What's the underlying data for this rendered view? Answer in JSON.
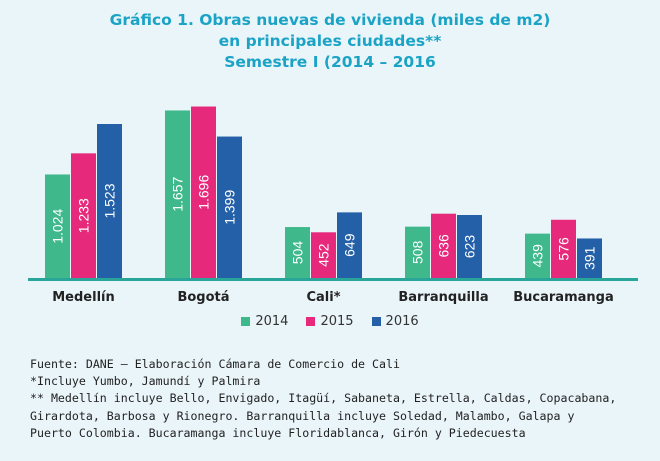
{
  "title_lines": [
    "Gráfico 1. Obras nuevas de vivienda (miles de m2)",
    "en principales ciudades**",
    "Semestre I (2014 – 2016"
  ],
  "chart_data": {
    "type": "bar",
    "categories": [
      "Medellín",
      "Bogotá",
      "Cali*",
      "Barranquilla",
      "Bucaramanga"
    ],
    "series": [
      {
        "name": "2014",
        "color": "#3fb98b",
        "values": [
          1.024,
          1.657,
          0.504,
          0.508,
          0.439
        ],
        "labels": [
          "1.024",
          "1.657",
          "504",
          "508",
          "439"
        ]
      },
      {
        "name": "2015",
        "color": "#e6297b",
        "values": [
          1.233,
          1.696,
          0.452,
          0.636,
          0.576
        ],
        "labels": [
          "1.233",
          "1.696",
          "452",
          "636",
          "576"
        ]
      },
      {
        "name": "2016",
        "color": "#2460a7",
        "values": [
          1.523,
          1.399,
          0.649,
          0.623,
          0.391
        ],
        "labels": [
          "1.523",
          "1.399",
          "649",
          "623",
          "391"
        ]
      }
    ],
    "ylim": [
      0,
      1.8
    ],
    "grid": false,
    "legend_position": "bottom"
  },
  "notes": [
    "Fuente: DANE – Elaboración Cámara de Comercio de Cali",
    "*Incluye Yumbo, Jamundí y Palmira",
    "** Medellín incluye Bello, Envigado, Itagüí, Sabaneta, Estrella, Caldas, Copacabana,",
    "Girardota, Barbosa y Rionegro. Barranquilla incluye Soledad, Malambo, Galapa y",
    "Puerto Colombia. Bucaramanga incluye Floridablanca, Girón y Piedecuesta"
  ]
}
